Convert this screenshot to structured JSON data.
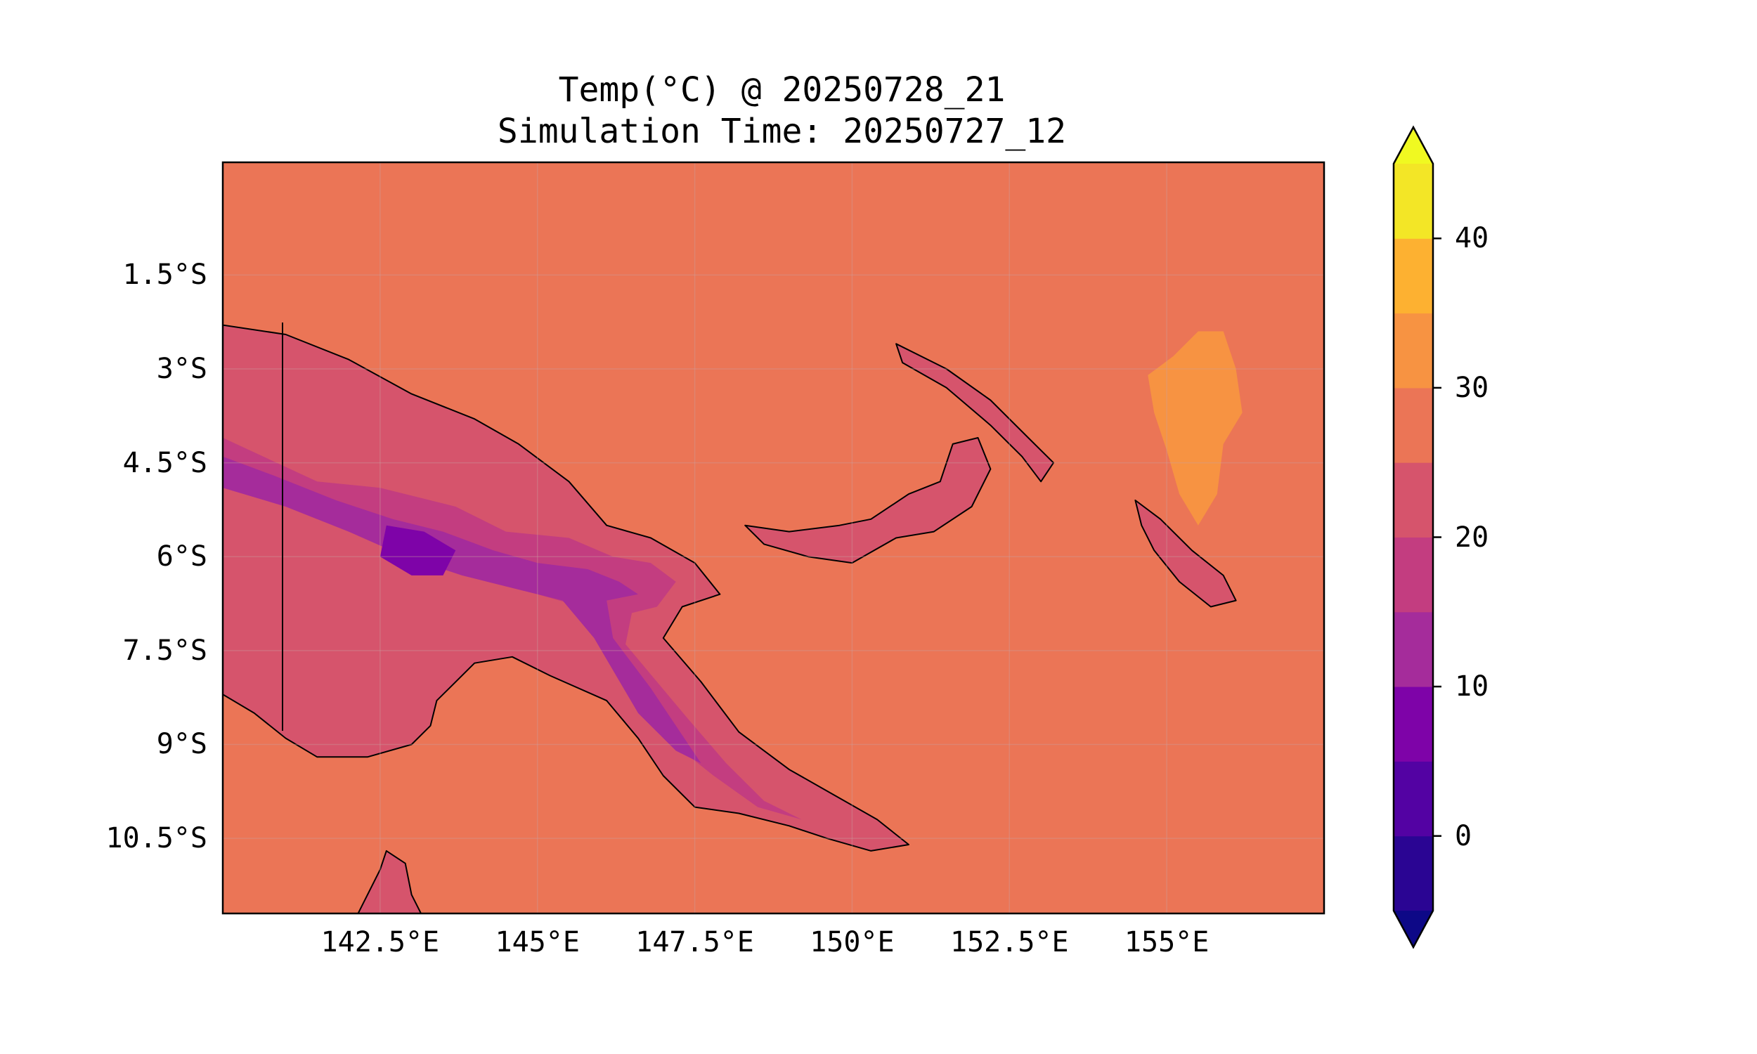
{
  "title": "Temp(°C) @ 20250728_21",
  "subtitle": "Simulation Time: 20250727_12",
  "map": {
    "lon_range": [
      140.0,
      157.5
    ],
    "lat_range": [
      -11.7,
      0.3
    ],
    "lat_ticks": [
      {
        "value": -1.5,
        "label": "1.5°S"
      },
      {
        "value": -3.0,
        "label": "3°S"
      },
      {
        "value": -4.5,
        "label": "4.5°S"
      },
      {
        "value": -6.0,
        "label": "6°S"
      },
      {
        "value": -7.5,
        "label": "7.5°S"
      },
      {
        "value": -9.0,
        "label": "9°S"
      },
      {
        "value": -10.5,
        "label": "10.5°S"
      }
    ],
    "lon_ticks": [
      {
        "value": 142.5,
        "label": "142.5°E"
      },
      {
        "value": 145.0,
        "label": "145°E"
      },
      {
        "value": 147.5,
        "label": "147.5°E"
      },
      {
        "value": 150.0,
        "label": "150°E"
      },
      {
        "value": 152.5,
        "label": "152.5°E"
      },
      {
        "value": 155.0,
        "label": "155°E"
      }
    ],
    "ocean_color": "#eb7556",
    "land_mid_color": "#d6546c",
    "regions": [
      {
        "name": "new-guinea-mainland",
        "level": 22,
        "coords": [
          [
            140,
            -2.3
          ],
          [
            141,
            -2.45
          ],
          [
            142,
            -2.85
          ],
          [
            143,
            -3.4
          ],
          [
            144,
            -3.8
          ],
          [
            144.7,
            -4.2
          ],
          [
            145.5,
            -4.8
          ],
          [
            146.1,
            -5.5
          ],
          [
            146.8,
            -5.7
          ],
          [
            147.5,
            -6.1
          ],
          [
            147.9,
            -6.6
          ],
          [
            147.3,
            -6.8
          ],
          [
            147.0,
            -7.3
          ],
          [
            147.6,
            -8.0
          ],
          [
            148.2,
            -8.8
          ],
          [
            149.0,
            -9.4
          ],
          [
            149.7,
            -9.8
          ],
          [
            150.4,
            -10.2
          ],
          [
            150.9,
            -10.6
          ],
          [
            150.3,
            -10.7
          ],
          [
            149.6,
            -10.5
          ],
          [
            149.0,
            -10.3
          ],
          [
            148.2,
            -10.1
          ],
          [
            147.5,
            -10.0
          ],
          [
            147.0,
            -9.5
          ],
          [
            146.6,
            -8.9
          ],
          [
            146.1,
            -8.3
          ],
          [
            145.2,
            -7.9
          ],
          [
            144.6,
            -7.6
          ],
          [
            144.0,
            -7.7
          ],
          [
            143.7,
            -8.0
          ],
          [
            143.4,
            -8.3
          ],
          [
            143.3,
            -8.7
          ],
          [
            143.0,
            -9.0
          ],
          [
            142.3,
            -9.2
          ],
          [
            141.5,
            -9.2
          ],
          [
            141.0,
            -8.9
          ],
          [
            140.5,
            -8.5
          ],
          [
            140,
            -8.2
          ]
        ]
      },
      {
        "name": "new-britain",
        "level": 22,
        "coords": [
          [
            148.3,
            -5.5
          ],
          [
            149.0,
            -5.6
          ],
          [
            149.8,
            -5.5
          ],
          [
            150.3,
            -5.4
          ],
          [
            150.9,
            -5.0
          ],
          [
            151.4,
            -4.8
          ],
          [
            151.6,
            -4.2
          ],
          [
            152.0,
            -4.1
          ],
          [
            152.2,
            -4.6
          ],
          [
            151.9,
            -5.2
          ],
          [
            151.3,
            -5.6
          ],
          [
            150.7,
            -5.7
          ],
          [
            150.0,
            -6.1
          ],
          [
            149.3,
            -6.0
          ],
          [
            148.6,
            -5.8
          ]
        ]
      },
      {
        "name": "new-ireland",
        "level": 22,
        "coords": [
          [
            150.7,
            -2.6
          ],
          [
            151.5,
            -3.0
          ],
          [
            152.2,
            -3.5
          ],
          [
            152.8,
            -4.1
          ],
          [
            153.2,
            -4.5
          ],
          [
            153.0,
            -4.8
          ],
          [
            152.7,
            -4.4
          ],
          [
            152.2,
            -3.9
          ],
          [
            151.5,
            -3.3
          ],
          [
            150.8,
            -2.9
          ]
        ]
      },
      {
        "name": "bougainville",
        "level": 22,
        "coords": [
          [
            154.5,
            -5.1
          ],
          [
            154.9,
            -5.4
          ],
          [
            155.4,
            -5.9
          ],
          [
            155.9,
            -6.3
          ],
          [
            156.1,
            -6.7
          ],
          [
            155.7,
            -6.8
          ],
          [
            155.2,
            -6.4
          ],
          [
            154.8,
            -5.9
          ],
          [
            154.6,
            -5.5
          ]
        ]
      },
      {
        "name": "cape-york",
        "level": 22,
        "coords": [
          [
            142.0,
            -12.0
          ],
          [
            142.2,
            -11.6
          ],
          [
            142.5,
            -11.0
          ],
          [
            142.6,
            -10.7
          ],
          [
            142.9,
            -10.9
          ],
          [
            143.0,
            -11.4
          ],
          [
            143.3,
            -12.0
          ]
        ]
      },
      {
        "name": "new-ireland-warm",
        "level": 32,
        "coords": [
          [
            154.7,
            -3.1
          ],
          [
            155.1,
            -2.8
          ],
          [
            155.5,
            -2.4
          ],
          [
            155.9,
            -2.4
          ],
          [
            156.1,
            -3.0
          ],
          [
            156.2,
            -3.7
          ],
          [
            155.9,
            -4.2
          ],
          [
            155.8,
            -5.0
          ],
          [
            155.5,
            -5.5
          ],
          [
            155.2,
            -5.0
          ],
          [
            155.0,
            -4.3
          ],
          [
            154.8,
            -3.7
          ]
        ]
      },
      {
        "name": "highlands-cool",
        "level": 15,
        "coords": [
          [
            140,
            -4.1
          ],
          [
            141.5,
            -4.8
          ],
          [
            142.5,
            -4.9
          ],
          [
            143.7,
            -5.2
          ],
          [
            144.5,
            -5.6
          ],
          [
            145.5,
            -5.7
          ],
          [
            146.2,
            -6.0
          ],
          [
            146.8,
            -6.1
          ],
          [
            147.2,
            -6.4
          ],
          [
            146.9,
            -6.8
          ],
          [
            146.5,
            -6.9
          ],
          [
            146.4,
            -7.4
          ],
          [
            146.9,
            -8.0
          ],
          [
            147.4,
            -8.6
          ],
          [
            148.0,
            -9.3
          ],
          [
            148.6,
            -9.9
          ],
          [
            149.2,
            -10.2
          ],
          [
            148.5,
            -10.0
          ],
          [
            147.8,
            -9.5
          ],
          [
            147.3,
            -9.1
          ],
          [
            146.5,
            -8.2
          ],
          [
            146.1,
            -7.2
          ],
          [
            145.7,
            -6.8
          ],
          [
            145.0,
            -6.6
          ],
          [
            144.2,
            -6.4
          ],
          [
            143.2,
            -6.1
          ],
          [
            142.5,
            -5.7
          ],
          [
            141.5,
            -5.4
          ],
          [
            140.5,
            -5.0
          ],
          [
            140,
            -4.8
          ]
        ]
      },
      {
        "name": "highlands-cold",
        "level": 10,
        "coords": [
          [
            140,
            -4.4
          ],
          [
            140.8,
            -4.7
          ],
          [
            141.8,
            -5.1
          ],
          [
            142.7,
            -5.4
          ],
          [
            143.5,
            -5.6
          ],
          [
            144.3,
            -5.9
          ],
          [
            145.0,
            -6.1
          ],
          [
            145.8,
            -6.2
          ],
          [
            146.3,
            -6.4
          ],
          [
            146.6,
            -6.6
          ],
          [
            146.1,
            -6.7
          ],
          [
            146.2,
            -7.3
          ],
          [
            146.8,
            -8.1
          ],
          [
            147.2,
            -8.7
          ],
          [
            147.6,
            -9.3
          ],
          [
            147.2,
            -9.1
          ],
          [
            146.6,
            -8.5
          ],
          [
            145.9,
            -7.3
          ],
          [
            145.4,
            -6.7
          ],
          [
            144.6,
            -6.5
          ],
          [
            143.8,
            -6.3
          ],
          [
            142.9,
            -6.0
          ],
          [
            142.0,
            -5.6
          ],
          [
            141.0,
            -5.2
          ],
          [
            140,
            -4.9
          ]
        ]
      },
      {
        "name": "highlands-coldest",
        "level": 5,
        "coords": [
          [
            142.6,
            -5.5
          ],
          [
            143.2,
            -5.6
          ],
          [
            143.7,
            -5.9
          ],
          [
            143.5,
            -6.3
          ],
          [
            143.0,
            -6.3
          ],
          [
            142.5,
            -6.0
          ]
        ]
      }
    ],
    "gridlines": true
  },
  "colorbar": {
    "ticks": [
      0,
      10,
      20,
      30,
      40
    ],
    "range": [
      -5,
      45
    ],
    "extend": "both",
    "levels": [
      {
        "from": -5,
        "to": 0,
        "color": "#2a0593"
      },
      {
        "from": 0,
        "to": 5,
        "color": "#5302a3"
      },
      {
        "from": 5,
        "to": 10,
        "color": "#7e03a8"
      },
      {
        "from": 10,
        "to": 15,
        "color": "#a52c9b"
      },
      {
        "from": 15,
        "to": 20,
        "color": "#c33d80"
      },
      {
        "from": 20,
        "to": 25,
        "color": "#d6546c"
      },
      {
        "from": 25,
        "to": 30,
        "color": "#eb7556"
      },
      {
        "from": 30,
        "to": 35,
        "color": "#f79342"
      },
      {
        "from": 35,
        "to": 40,
        "color": "#fdb131"
      },
      {
        "from": 40,
        "to": 45,
        "color": "#f3e626"
      }
    ],
    "under_color": "#0d0887",
    "over_color": "#f0f921"
  }
}
